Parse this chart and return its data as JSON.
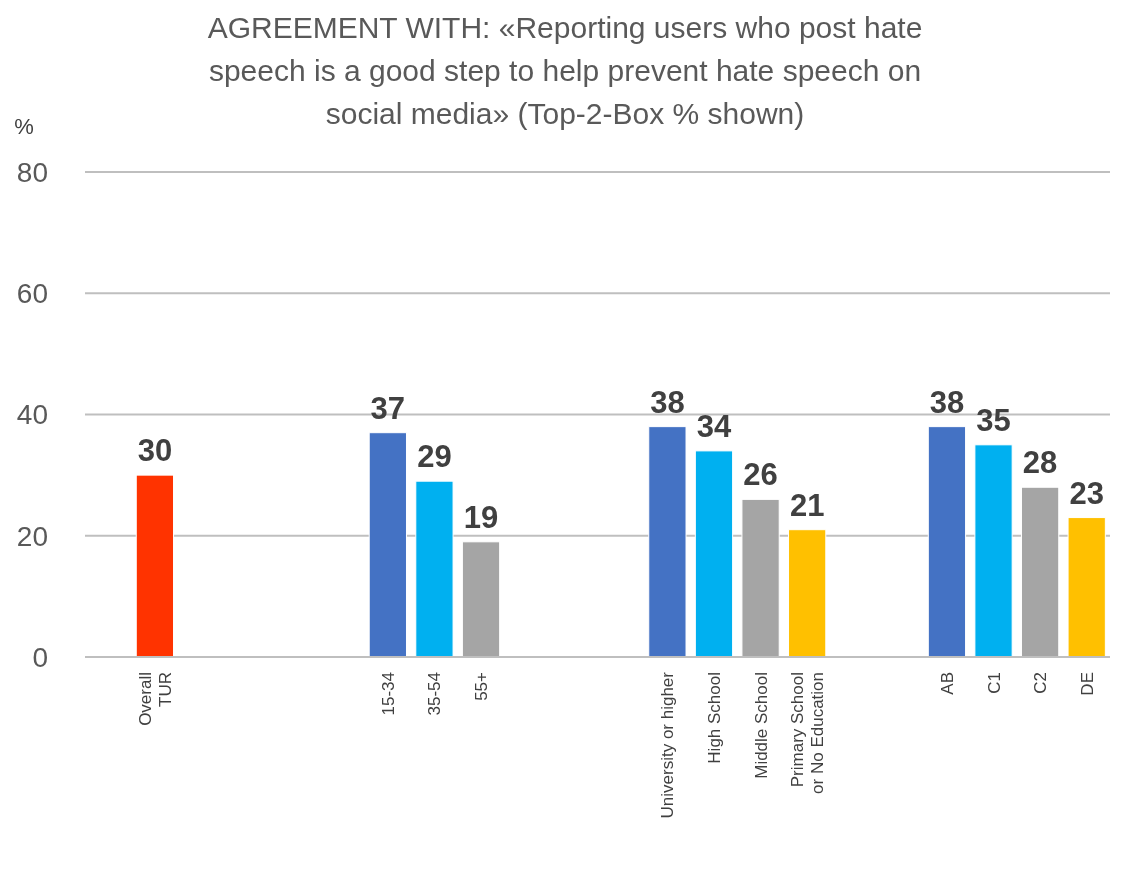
{
  "chart_data": {
    "type": "bar",
    "title": "AGREEMENT WITH: «Reporting users who post hate speech is a good step to help prevent hate speech on social media» (Top-2-Box % shown)",
    "ylabel": "%",
    "categories": [
      null,
      "Overall\nTUR",
      null,
      null,
      null,
      null,
      "15-34",
      "35-54",
      "55+",
      null,
      null,
      null,
      "University  or higher",
      "High School",
      "Middle School",
      "Primary School\nor No Education",
      null,
      null,
      "AB",
      "C1",
      "C2",
      "DE"
    ],
    "values": [
      null,
      30,
      null,
      null,
      null,
      null,
      37,
      29,
      19,
      null,
      null,
      null,
      38,
      34,
      26,
      21,
      null,
      null,
      38,
      35,
      28,
      23
    ],
    "colors": [
      null,
      "#ff3300",
      null,
      null,
      null,
      null,
      "#4472c4",
      "#00b0f0",
      "#a5a5a5",
      null,
      null,
      null,
      "#4472c4",
      "#00b0f0",
      "#a5a5a5",
      "#ffc000",
      null,
      null,
      "#4472c4",
      "#00b0f0",
      "#a5a5a5",
      "#ffc000"
    ],
    "ylim": [
      0,
      80
    ],
    "yticks": [
      0,
      20,
      40,
      60,
      80
    ],
    "grid": "y",
    "data_labels": true
  }
}
